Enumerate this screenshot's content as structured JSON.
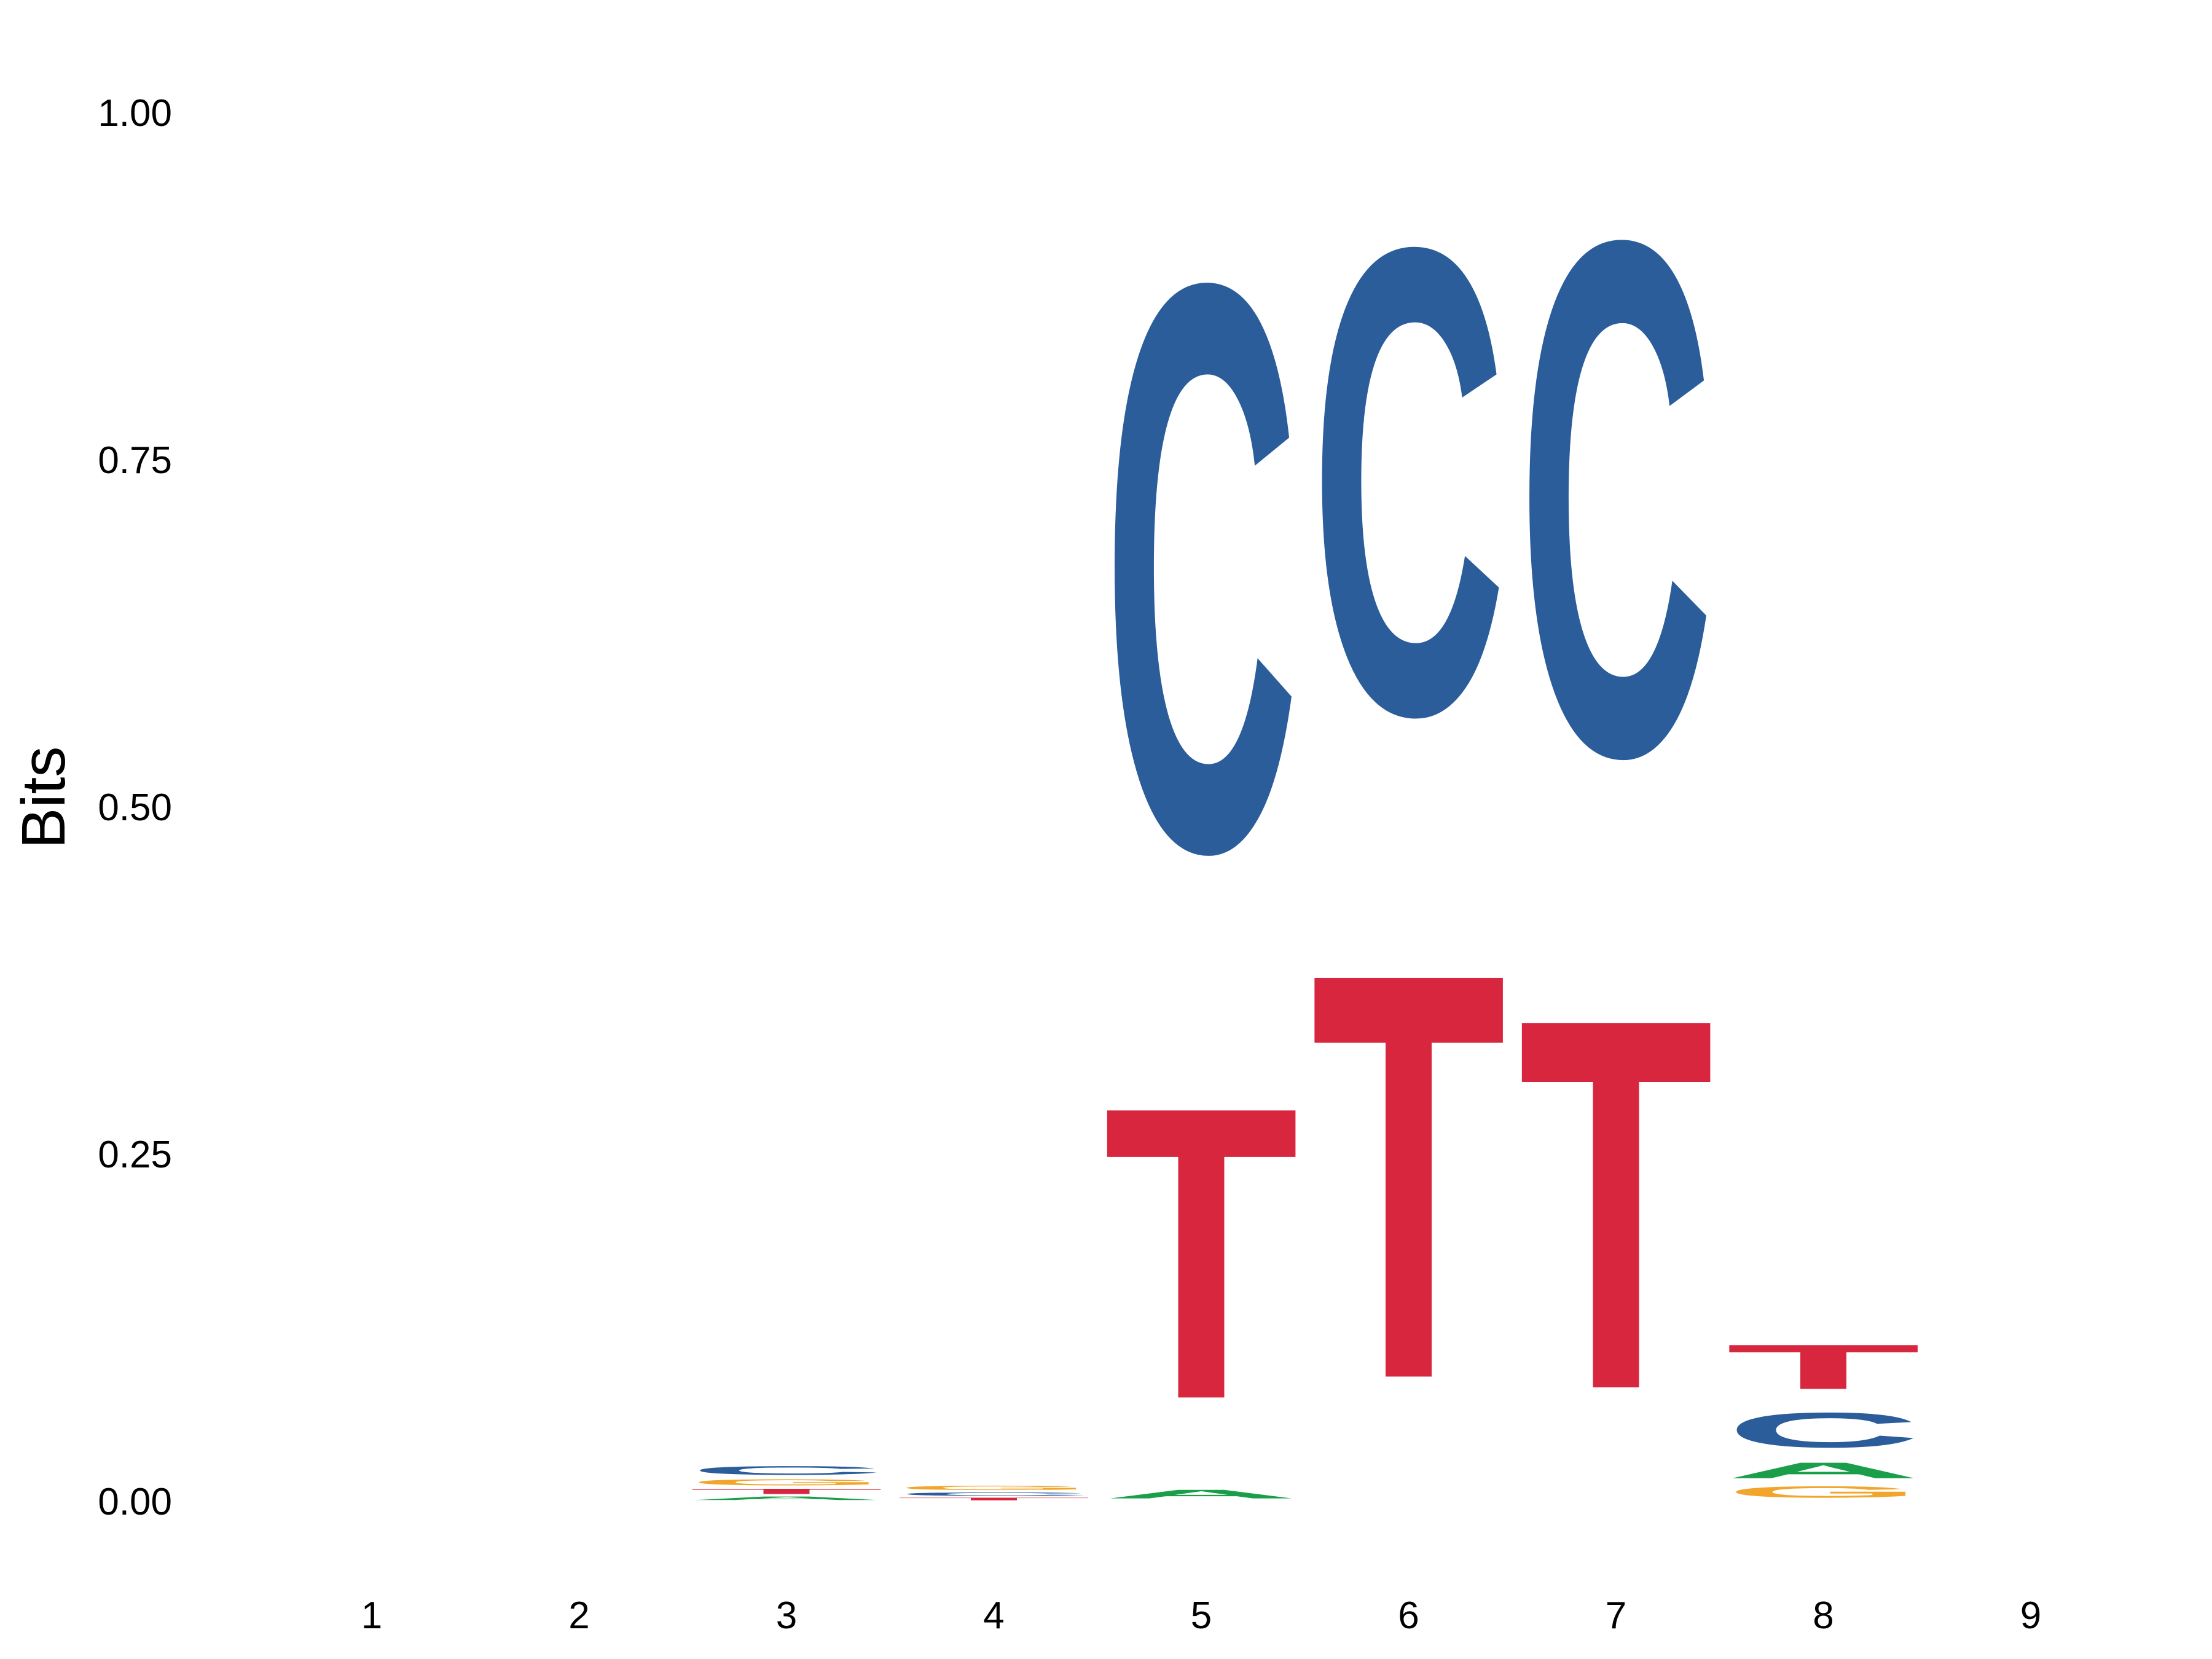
{
  "chart_data": {
    "type": "sequence-logo",
    "ylabel": "Bits",
    "ylim": [
      0,
      1.0
    ],
    "y_ticks": [
      "0.00",
      "0.25",
      "0.50",
      "0.75",
      "1.00"
    ],
    "x_ticks": [
      "1",
      "2",
      "3",
      "4",
      "5",
      "6",
      "7",
      "8",
      "9"
    ],
    "grid": false,
    "colors": {
      "A": "#1a9e4a",
      "C": "#2a5d9a",
      "G": "#f2a52b",
      "T": "#d7263d"
    },
    "positions": [
      {
        "position": "1",
        "letters": []
      },
      {
        "position": "2",
        "letters": []
      },
      {
        "position": "3",
        "letters": [
          {
            "letter": "A",
            "bits": 0.004
          },
          {
            "letter": "T",
            "bits": 0.006
          },
          {
            "letter": "G",
            "bits": 0.007
          },
          {
            "letter": "C",
            "bits": 0.01
          }
        ]
      },
      {
        "position": "4",
        "letters": [
          {
            "letter": "T",
            "bits": 0.003
          },
          {
            "letter": "C",
            "bits": 0.004
          },
          {
            "letter": "G",
            "bits": 0.005
          }
        ]
      },
      {
        "position": "5",
        "letters": [
          {
            "letter": "A",
            "bits": 0.01
          },
          {
            "letter": "T",
            "bits": 0.335
          },
          {
            "letter": "C",
            "bits": 0.65
          }
        ]
      },
      {
        "position": "6",
        "letters": [
          {
            "letter": "T",
            "bits": 0.465
          },
          {
            "letter": "C",
            "bits": 0.535
          }
        ]
      },
      {
        "position": "7",
        "letters": [
          {
            "letter": "T",
            "bits": 0.425
          },
          {
            "letter": "C",
            "bits": 0.59
          }
        ]
      },
      {
        "position": "8",
        "letters": [
          {
            "letter": "G",
            "bits": 0.013
          },
          {
            "letter": "A",
            "bits": 0.018
          },
          {
            "letter": "C",
            "bits": 0.04
          },
          {
            "letter": "T",
            "bits": 0.051
          }
        ]
      },
      {
        "position": "9",
        "letters": []
      }
    ]
  }
}
